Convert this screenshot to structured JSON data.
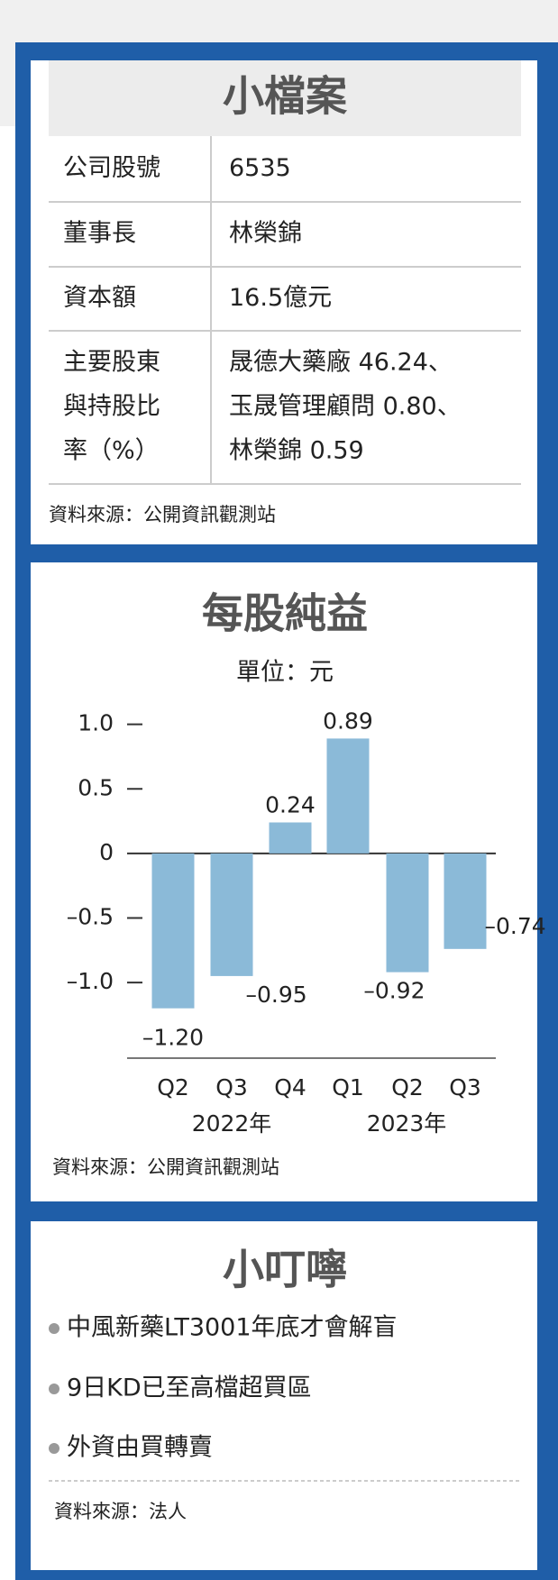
{
  "profile": {
    "title": "小檔案",
    "rows": [
      {
        "label": [
          "公司股號"
        ],
        "value": [
          "6535"
        ]
      },
      {
        "label": [
          "董事長"
        ],
        "value": [
          "林榮錦"
        ]
      },
      {
        "label": [
          "資本額"
        ],
        "value": [
          "16.5億元"
        ]
      },
      {
        "label": [
          "主要股東",
          "與持股比",
          "率（%）"
        ],
        "value": [
          "晟德大藥廠 46.24、",
          "玉晟管理顧問 0.80、",
          "林榮錦 0.59"
        ]
      }
    ],
    "source": "資料來源：公開資訊觀測站"
  },
  "chart_data": {
    "type": "bar",
    "title": "每股純益",
    "subtitle": "單位：元",
    "categories": [
      "Q2",
      "Q3",
      "Q4",
      "Q1",
      "Q2",
      "Q3"
    ],
    "category_groups": [
      "2022年",
      "2023年"
    ],
    "values": [
      -1.2,
      -0.95,
      0.24,
      0.89,
      -0.92,
      -0.74
    ],
    "value_labels": [
      "–1.20",
      "–0.95",
      "0.24",
      "0.89",
      "–0.92",
      "–0.74"
    ],
    "color": "#8bbad8",
    "ylim": [
      -1.6,
      1.2
    ],
    "yticks": [
      {
        "value": 1.0,
        "label": "1.0"
      },
      {
        "value": 0.5,
        "label": "0.5"
      },
      0,
      {
        "value": -0.5,
        "label": "–0.5"
      },
      {
        "value": -1.0,
        "label": "–1.0"
      }
    ],
    "source": "資料來源：公開資訊觀測站"
  },
  "tips": {
    "title": "小叮嚀",
    "items": [
      "中風新藥LT3001年底才會解盲",
      "9日KD已至高檔超買區",
      "外資由買轉賣"
    ],
    "source": "資料來源：法人"
  }
}
